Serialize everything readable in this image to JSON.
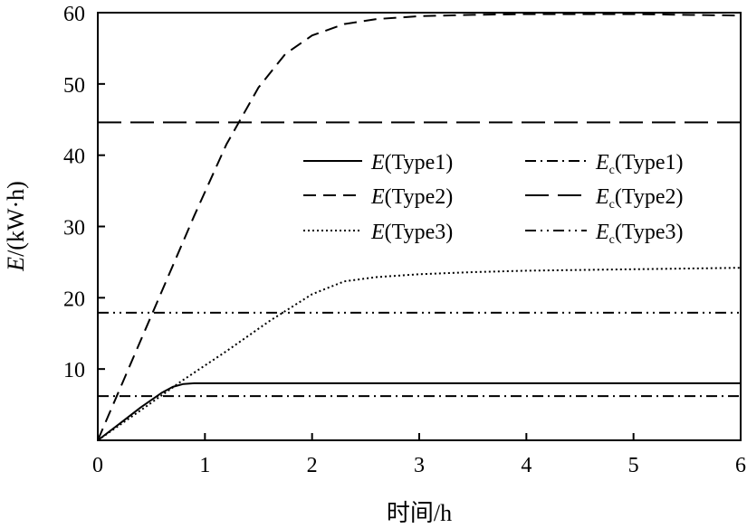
{
  "chart_data": {
    "type": "line",
    "title": "",
    "xlabel": "时间/h",
    "ylabel_var": "E",
    "ylabel_unit": "/(kW·h)",
    "xlim": [
      0,
      6
    ],
    "ylim": [
      0,
      60
    ],
    "xticks": [
      0,
      1,
      2,
      3,
      4,
      5,
      6
    ],
    "yticks": [
      10,
      20,
      30,
      40,
      50,
      60
    ],
    "xtick_labels": [
      "0",
      "1",
      "2",
      "3",
      "4",
      "5",
      "6"
    ],
    "ytick_labels": [
      "10",
      "20",
      "30",
      "40",
      "50",
      "60"
    ],
    "grid": false,
    "legend_position": "right",
    "series": [
      {
        "id": "e-type1",
        "name_var": "E",
        "name_sub": "",
        "name_rest": "(Type1)",
        "dash": "solid",
        "x": [
          0,
          0.2,
          0.4,
          0.6,
          0.7,
          0.8,
          0.9,
          1.0,
          2.0,
          3.0,
          4.0,
          5.0,
          6.0
        ],
        "y": [
          0,
          2.3,
          4.6,
          6.7,
          7.5,
          7.9,
          8.0,
          8.0,
          8.0,
          8.0,
          8.0,
          8.0,
          8.0
        ]
      },
      {
        "id": "e-type2",
        "name_var": "E",
        "name_sub": "",
        "name_rest": "(Type2)",
        "dash": "dash",
        "x": [
          0,
          0.3,
          0.6,
          0.9,
          1.2,
          1.5,
          1.75,
          2.0,
          2.3,
          2.6,
          3.0,
          3.5,
          4.0,
          5.0,
          6.0
        ],
        "y": [
          0,
          10.5,
          21,
          31.5,
          41.5,
          49.5,
          54.2,
          56.8,
          58.4,
          59.1,
          59.5,
          59.7,
          59.8,
          59.8,
          59.6
        ]
      },
      {
        "id": "e-type3",
        "name_var": "E",
        "name_sub": "",
        "name_rest": "(Type3)",
        "dash": "dot",
        "x": [
          0,
          0.4,
          0.8,
          1.2,
          1.6,
          2.0,
          2.3,
          2.6,
          3.0,
          3.5,
          4.0,
          5.0,
          6.0
        ],
        "y": [
          0,
          4.2,
          8.5,
          12.5,
          16.7,
          20.5,
          22.3,
          22.9,
          23.3,
          23.6,
          23.8,
          24.0,
          24.2
        ]
      },
      {
        "id": "ec-type1",
        "name_var": "E",
        "name_sub": "c",
        "name_rest": "(Type1)",
        "dash": "dashdot",
        "x": [
          0,
          6
        ],
        "y": [
          6.2,
          6.2
        ]
      },
      {
        "id": "ec-type2",
        "name_var": "E",
        "name_sub": "c",
        "name_rest": "(Type2)",
        "dash": "longdash",
        "x": [
          0,
          6
        ],
        "y": [
          44.6,
          44.6
        ]
      },
      {
        "id": "ec-type3",
        "name_var": "E",
        "name_sub": "c",
        "name_rest": "(Type3)",
        "dash": "dashdotdot",
        "x": [
          0,
          6
        ],
        "y": [
          17.9,
          17.9
        ]
      }
    ]
  }
}
